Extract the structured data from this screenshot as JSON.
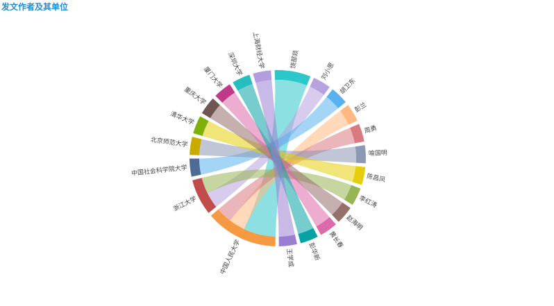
{
  "title": "发文作者及其单位",
  "chart_data": {
    "type": "chord",
    "title": "发文作者及其单位",
    "nodes": [
      {
        "name": "饶部燚",
        "color": "#2ec7c9"
      },
      {
        "name": "刘小思",
        "color": "#b6a2de"
      },
      {
        "name": "胡卫东",
        "color": "#5ab1ef"
      },
      {
        "name": "彭兰",
        "color": "#ffb980"
      },
      {
        "name": "周勇",
        "color": "#d87a80"
      },
      {
        "name": "喻国明",
        "color": "#8d98b3"
      },
      {
        "name": "陈昌凤",
        "color": "#e5cf0d"
      },
      {
        "name": "李红涛",
        "color": "#97b552"
      },
      {
        "name": "赵海明",
        "color": "#95706d"
      },
      {
        "name": "黄长春",
        "color": "#dc69aa"
      },
      {
        "name": "彭华新",
        "color": "#07a2a4"
      },
      {
        "name": "王学成",
        "color": "#9a7fd1"
      },
      {
        "name": "中国人民大学",
        "color": "#f59a43"
      },
      {
        "name": "浙江大学",
        "color": "#c14c4c"
      },
      {
        "name": "中国社会科学院大学",
        "color": "#4e6b95"
      },
      {
        "name": "北京师范大学",
        "color": "#c9ab00"
      },
      {
        "name": "清华大学",
        "color": "#7eb00a"
      },
      {
        "name": "重庆大学",
        "color": "#6f5553"
      },
      {
        "name": "厦门大学",
        "color": "#c13a8a"
      },
      {
        "name": "深圳大学",
        "color": "#25bdbd"
      },
      {
        "name": "上海财经大学",
        "color": "#b39ddf"
      }
    ],
    "links": [
      {
        "source": "饶部燚",
        "target": "中国人民大学",
        "value": 2
      },
      {
        "source": "刘小思",
        "target": "浙江大学",
        "value": 1
      },
      {
        "source": "胡卫东",
        "target": "中国社会科学院大学",
        "value": 1
      },
      {
        "source": "彭兰",
        "target": "中国人民大学",
        "value": 1
      },
      {
        "source": "周勇",
        "target": "中国人民大学",
        "value": 1
      },
      {
        "source": "喻国明",
        "target": "北京师范大学",
        "value": 1
      },
      {
        "source": "陈昌凤",
        "target": "清华大学",
        "value": 1
      },
      {
        "source": "李红涛",
        "target": "浙江大学",
        "value": 1
      },
      {
        "source": "赵海明",
        "target": "重庆大学",
        "value": 1
      },
      {
        "source": "黄长春",
        "target": "厦门大学",
        "value": 1
      },
      {
        "source": "彭华新",
        "target": "深圳大学",
        "value": 1
      },
      {
        "source": "王学成",
        "target": "上海财经大学",
        "value": 1
      }
    ]
  }
}
